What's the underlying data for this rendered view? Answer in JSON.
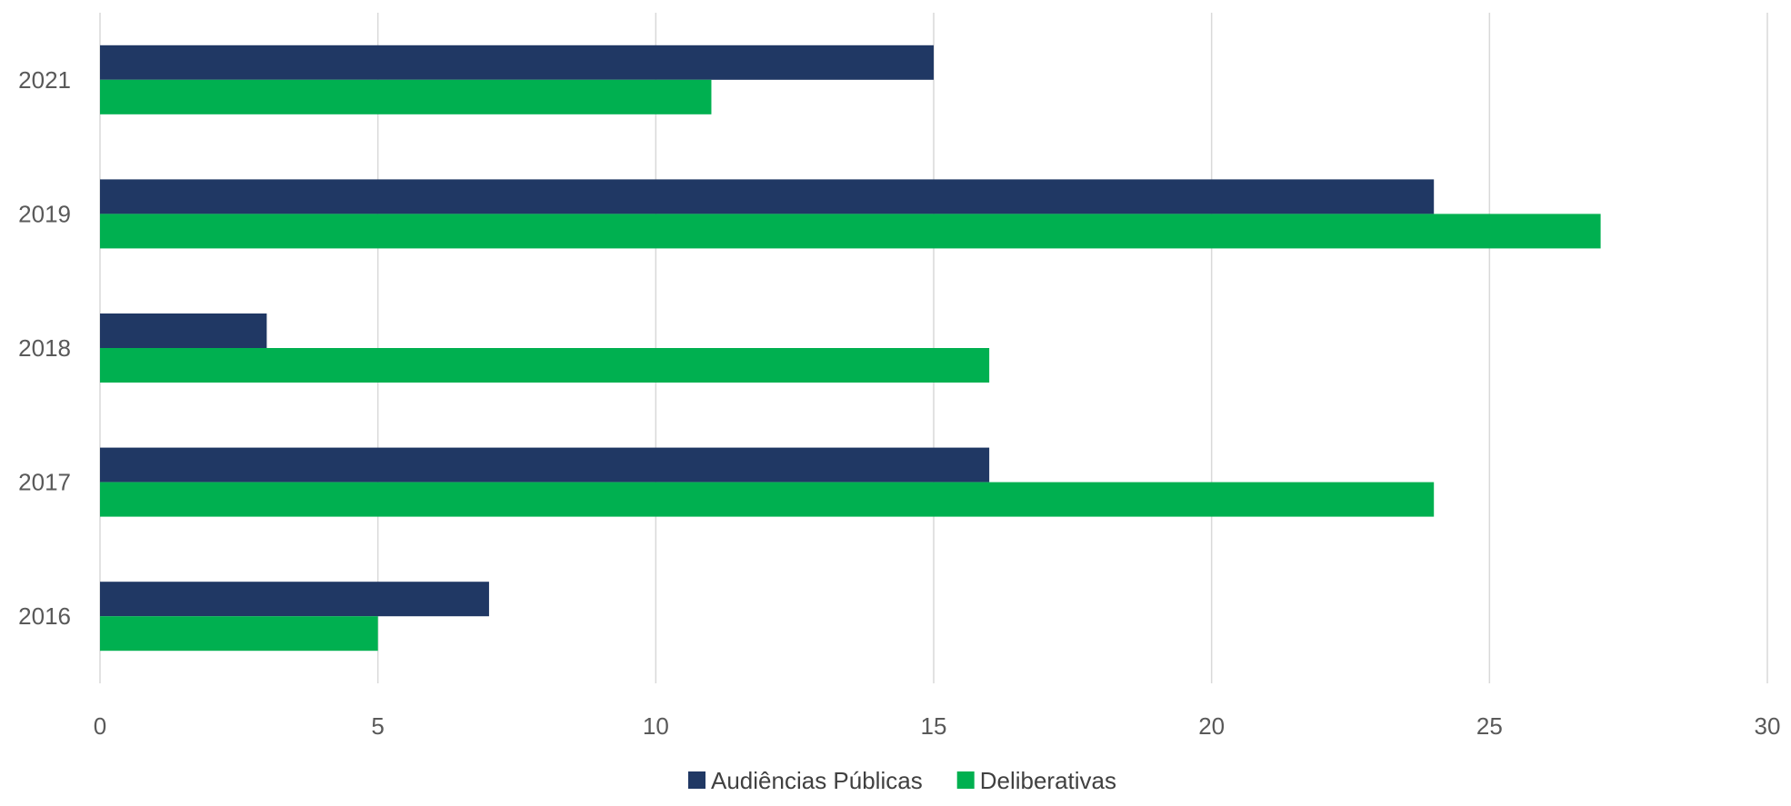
{
  "chart_data": {
    "type": "bar",
    "orientation": "horizontal",
    "title": "",
    "xlabel": "",
    "ylabel": "",
    "categories": [
      "2021",
      "2019",
      "2018",
      "2017",
      "2016"
    ],
    "series": [
      {
        "name": "Audiências Públicas",
        "color": "#203864",
        "values": [
          15,
          24,
          3,
          16,
          7
        ]
      },
      {
        "name": "Deliberativas",
        "color": "#00b050",
        "values": [
          11,
          27,
          16,
          24,
          5
        ]
      }
    ],
    "xlim": [
      0,
      30
    ],
    "xticks": [
      "0",
      "5",
      "10",
      "15",
      "20",
      "25",
      "30"
    ],
    "grid": true,
    "legend_position": "bottom"
  }
}
